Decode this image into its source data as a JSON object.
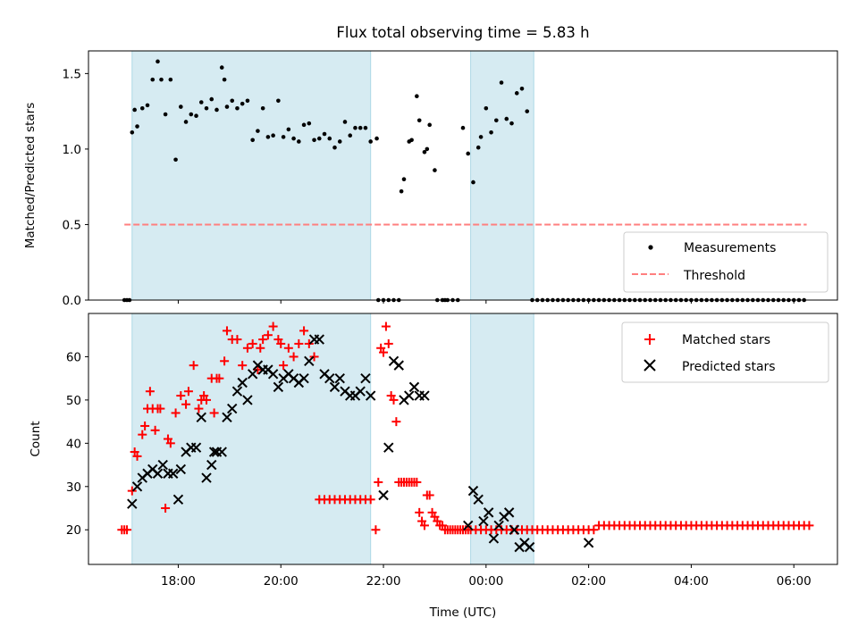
{
  "chart_data": [
    {
      "type": "scatter",
      "title": "Flux total observing time = 5.83 h",
      "ylabel": "Matched/Predicted stars",
      "xlabel": "",
      "xlim": [
        -0.75,
        13.85
      ],
      "ylim": [
        0,
        1.65
      ],
      "yticks": [
        0,
        0.5,
        1.0,
        1.5
      ],
      "ytick_labels": [
        "0.0",
        "0.5",
        "1.0",
        "1.5"
      ],
      "xticks": [
        1,
        3,
        5,
        7,
        9,
        11,
        13
      ],
      "grid": false,
      "legend": {
        "position": "lower-right",
        "entries": [
          "Measurements",
          "Threshold"
        ]
      },
      "shaded_intervals": [
        [
          0.1,
          4.75
        ],
        [
          6.7,
          7.93
        ]
      ],
      "threshold": {
        "value": 0.5,
        "x_start": -0.05,
        "x_end": 13.25,
        "color": "#ff7f7f"
      },
      "series": [
        {
          "name": "Measurements",
          "x": [
            -0.05,
            0.0,
            0.05,
            0.1,
            0.15,
            0.2,
            0.3,
            0.4,
            0.5,
            0.6,
            0.67,
            0.75,
            0.85,
            0.95,
            1.05,
            1.15,
            1.25,
            1.35,
            1.45,
            1.55,
            1.65,
            1.75,
            1.85,
            1.9,
            1.95,
            2.05,
            2.15,
            2.25,
            2.35,
            2.45,
            2.55,
            2.65,
            2.75,
            2.85,
            2.95,
            3.05,
            3.15,
            3.25,
            3.35,
            3.45,
            3.55,
            3.65,
            3.75,
            3.85,
            3.95,
            4.05,
            4.15,
            4.25,
            4.35,
            4.45,
            4.55,
            4.65,
            4.75,
            4.87,
            4.9,
            5.0,
            5.1,
            5.2,
            5.3,
            5.35,
            5.4,
            5.5,
            5.55,
            5.65,
            5.7,
            5.8,
            5.85,
            5.9,
            6.0,
            6.05,
            6.15,
            6.2,
            6.25,
            6.35,
            6.45,
            6.55,
            6.65,
            6.75,
            6.85,
            6.9,
            7.0,
            7.1,
            7.2,
            7.3,
            7.4,
            7.5,
            7.6,
            7.7,
            7.8,
            7.9,
            8.0,
            8.1,
            8.2,
            8.3,
            8.4,
            8.5,
            8.6,
            8.7,
            8.8,
            8.9,
            9.0,
            9.1,
            9.2,
            9.3,
            9.4,
            9.5,
            9.6,
            9.7,
            9.8,
            9.9,
            10.0,
            10.1,
            10.2,
            10.3,
            10.4,
            10.5,
            10.6,
            10.7,
            10.8,
            10.9,
            11.0,
            11.1,
            11.2,
            11.3,
            11.4,
            11.5,
            11.6,
            11.7,
            11.8,
            11.9,
            12.0,
            12.1,
            12.2,
            12.3,
            12.4,
            12.5,
            12.6,
            12.7,
            12.8,
            12.9,
            13.0,
            13.1,
            13.2
          ],
          "y": [
            0.0,
            0.0,
            0.0,
            1.11,
            1.26,
            1.15,
            1.27,
            1.29,
            1.46,
            1.58,
            1.46,
            1.23,
            1.46,
            0.93,
            1.28,
            1.18,
            1.23,
            1.22,
            1.31,
            1.27,
            1.33,
            1.26,
            1.54,
            1.46,
            1.28,
            1.32,
            1.27,
            1.3,
            1.32,
            1.06,
            1.12,
            1.27,
            1.08,
            1.09,
            1.32,
            1.08,
            1.13,
            1.07,
            1.05,
            1.16,
            1.17,
            1.06,
            1.07,
            1.1,
            1.07,
            1.01,
            1.05,
            1.18,
            1.09,
            1.14,
            1.14,
            1.14,
            1.05,
            1.07,
            0.0,
            0.0,
            0.0,
            0.0,
            0.0,
            0.72,
            0.8,
            1.05,
            1.06,
            1.35,
            1.19,
            0.98,
            1.0,
            1.16,
            0.86,
            0.0,
            0.0,
            0.0,
            0.0,
            0.0,
            0.0,
            1.14,
            0.97,
            0.78,
            1.01,
            1.08,
            1.27,
            1.11,
            1.19,
            1.44,
            1.2,
            1.17,
            1.37,
            1.4,
            1.25,
            0.0,
            0.0,
            0.0,
            0.0,
            0.0,
            0.0,
            0.0,
            0.0,
            0.0,
            0.0,
            0.0,
            0.0,
            0.0,
            0.0,
            0.0,
            0.0,
            0.0,
            0.0,
            0.0,
            0.0,
            0.0,
            0.0,
            0.0,
            0.0,
            0.0,
            0.0,
            0.0,
            0.0,
            0.0,
            0.0,
            0.0,
            0.0,
            0.0,
            0.0,
            0.0,
            0.0,
            0.0,
            0.0,
            0.0,
            0.0,
            0.0,
            0.0,
            0.0,
            0.0,
            0.0,
            0.0,
            0.0,
            0.0,
            0.0,
            0.0,
            0.0,
            0.0,
            0.0,
            0.0
          ]
        }
      ]
    },
    {
      "type": "scatter",
      "title": "",
      "xlabel": "Time (UTC)",
      "ylabel": "Count",
      "xlim": [
        -0.75,
        13.85
      ],
      "ylim": [
        12,
        70
      ],
      "yticks": [
        20,
        30,
        40,
        50,
        60
      ],
      "ytick_labels": [
        "20",
        "30",
        "40",
        "50",
        "60"
      ],
      "xticks": [
        1,
        3,
        5,
        7,
        9,
        11,
        13
      ],
      "xtick_labels": [
        "18:00",
        "20:00",
        "22:00",
        "00:00",
        "02:00",
        "04:00",
        "06:00"
      ],
      "grid": false,
      "legend": {
        "position": "top-right",
        "entries": [
          "Matched stars",
          "Predicted stars"
        ]
      },
      "shaded_intervals": [
        [
          0.1,
          4.75
        ],
        [
          6.7,
          7.93
        ]
      ],
      "series": [
        {
          "name": "Matched stars",
          "marker": "+",
          "color": "#ff0000",
          "x": [
            -0.1,
            -0.05,
            0.0,
            0.1,
            0.15,
            0.2,
            0.3,
            0.35,
            0.4,
            0.45,
            0.5,
            0.55,
            0.6,
            0.65,
            0.75,
            0.8,
            0.85,
            0.95,
            1.05,
            1.15,
            1.2,
            1.3,
            1.4,
            1.45,
            1.5,
            1.55,
            1.65,
            1.7,
            1.75,
            1.8,
            1.9,
            1.95,
            2.05,
            2.15,
            2.25,
            2.35,
            2.45,
            2.55,
            2.6,
            2.65,
            2.75,
            2.85,
            2.95,
            3.0,
            3.05,
            3.15,
            3.25,
            3.35,
            3.45,
            3.55,
            3.65,
            3.75,
            3.85,
            3.95,
            4.05,
            4.15,
            4.25,
            4.35,
            4.45,
            4.55,
            4.65,
            4.75,
            4.85,
            4.9,
            4.95,
            5.0,
            5.05,
            5.1,
            5.15,
            5.2,
            5.25,
            5.3,
            5.35,
            5.4,
            5.45,
            5.5,
            5.55,
            5.6,
            5.65,
            5.7,
            5.75,
            5.8,
            5.85,
            5.9,
            5.95,
            6.0,
            6.05,
            6.1,
            6.15,
            6.2,
            6.25,
            6.3,
            6.35,
            6.4,
            6.45,
            6.5,
            6.55,
            6.6,
            6.65,
            6.7,
            6.8,
            6.9,
            7.0,
            7.1,
            7.2,
            7.3,
            7.4,
            7.5,
            7.6,
            7.7,
            7.8,
            7.9,
            8.0,
            8.1,
            8.2,
            8.3,
            8.4,
            8.5,
            8.6,
            8.7,
            8.8,
            8.9,
            9.0,
            9.1,
            9.2,
            9.3,
            9.4,
            9.5,
            9.6,
            9.7,
            9.8,
            9.9,
            10.0,
            10.1,
            10.2,
            10.3,
            10.4,
            10.5,
            10.6,
            10.7,
            10.8,
            10.9,
            11.0,
            11.1,
            11.2,
            11.3,
            11.4,
            11.5,
            11.6,
            11.7,
            11.8,
            11.9,
            12.0,
            12.1,
            12.2,
            12.3,
            12.4,
            12.5,
            12.6,
            12.7,
            12.8,
            12.9,
            13.0,
            13.1,
            13.2,
            13.3
          ],
          "y": [
            20,
            20,
            20,
            29,
            38,
            37,
            42,
            44,
            48,
            52,
            48,
            43,
            48,
            48,
            25,
            41,
            40,
            47,
            51,
            49,
            52,
            58,
            48,
            50,
            51,
            50,
            55,
            47,
            55,
            55,
            59,
            66,
            64,
            64,
            58,
            62,
            63,
            57,
            62,
            64,
            65,
            67,
            64,
            63,
            58,
            62,
            60,
            63,
            66,
            63,
            60,
            27,
            27,
            27,
            27,
            27,
            27,
            27,
            27,
            27,
            27,
            27,
            20,
            31,
            62,
            61,
            67,
            63,
            51,
            50,
            45,
            31,
            31,
            31,
            31,
            31,
            31,
            31,
            31,
            24,
            22,
            21,
            28,
            28,
            24,
            23,
            22,
            21,
            21,
            20,
            20,
            20,
            20,
            20,
            20,
            20,
            20,
            20,
            20,
            20,
            20,
            20,
            20,
            20,
            20,
            20,
            20,
            20,
            20,
            20,
            20,
            20,
            20,
            20,
            20,
            20,
            20,
            20,
            20,
            20,
            20,
            20,
            20,
            20,
            21,
            21,
            21,
            21,
            21,
            21,
            21,
            21,
            21,
            21,
            21,
            21,
            21,
            21,
            21,
            21,
            21,
            21,
            21,
            21,
            21,
            21,
            21,
            21,
            21,
            21,
            21,
            21,
            21,
            21,
            21,
            21,
            21,
            21,
            21,
            21,
            21,
            21,
            21,
            21,
            21,
            21
          ],
          "x_extra_note": ""
        },
        {
          "name": "Predicted stars",
          "marker": "x",
          "color": "#000000",
          "x": [
            0.1,
            0.2,
            0.3,
            0.4,
            0.5,
            0.6,
            0.7,
            0.8,
            0.9,
            1.0,
            1.05,
            1.15,
            1.25,
            1.35,
            1.45,
            1.55,
            1.65,
            1.7,
            1.75,
            1.85,
            1.95,
            2.05,
            2.15,
            2.25,
            2.35,
            2.45,
            2.55,
            2.65,
            2.75,
            2.85,
            2.95,
            3.05,
            3.15,
            3.25,
            3.35,
            3.45,
            3.55,
            3.65,
            3.75,
            3.85,
            3.95,
            4.05,
            4.15,
            4.25,
            4.35,
            4.45,
            4.55,
            4.65,
            4.75,
            5.0,
            5.1,
            5.2,
            5.3,
            5.4,
            5.5,
            5.6,
            5.7,
            5.8,
            6.65,
            6.75,
            6.85,
            6.95,
            7.05,
            7.15,
            7.25,
            7.35,
            7.45,
            7.55,
            7.65,
            7.75,
            7.85,
            9.0
          ],
          "y": [
            26,
            30,
            32,
            33,
            34,
            33,
            35,
            33,
            33,
            27,
            34,
            38,
            39,
            39,
            46,
            32,
            35,
            38,
            38,
            38,
            46,
            48,
            52,
            54,
            50,
            56,
            58,
            57,
            57,
            56,
            53,
            55,
            56,
            55,
            54,
            55,
            59,
            64,
            64,
            56,
            55,
            53,
            55,
            52,
            51,
            51,
            52,
            55,
            51,
            28,
            39,
            59,
            58,
            50,
            51,
            53,
            51,
            51,
            21,
            29,
            27,
            22,
            24,
            18,
            21,
            23,
            24,
            20,
            16,
            17,
            16,
            17
          ]
        }
      ]
    }
  ]
}
